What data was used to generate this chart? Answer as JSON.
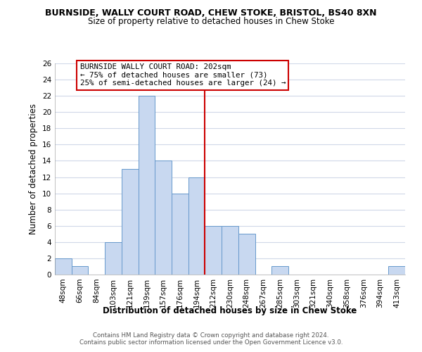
{
  "title": "BURNSIDE, WALLY COURT ROAD, CHEW STOKE, BRISTOL, BS40 8XN",
  "subtitle": "Size of property relative to detached houses in Chew Stoke",
  "xlabel": "Distribution of detached houses by size in Chew Stoke",
  "ylabel": "Number of detached properties",
  "bin_labels": [
    "48sqm",
    "66sqm",
    "84sqm",
    "103sqm",
    "121sqm",
    "139sqm",
    "157sqm",
    "176sqm",
    "194sqm",
    "212sqm",
    "230sqm",
    "248sqm",
    "267sqm",
    "285sqm",
    "303sqm",
    "321sqm",
    "340sqm",
    "358sqm",
    "376sqm",
    "394sqm",
    "413sqm"
  ],
  "bar_heights": [
    2,
    1,
    0,
    4,
    13,
    22,
    14,
    10,
    12,
    6,
    6,
    5,
    0,
    1,
    0,
    0,
    0,
    0,
    0,
    0,
    1
  ],
  "bar_color": "#c8d8f0",
  "bar_edge_color": "#6699cc",
  "property_line_x": 8.5,
  "property_line_color": "#cc0000",
  "annotation_title": "BURNSIDE WALLY COURT ROAD: 202sqm",
  "annotation_line1": "← 75% of detached houses are smaller (73)",
  "annotation_line2": "25% of semi-detached houses are larger (24) →",
  "annotation_box_facecolor": "#ffffff",
  "annotation_box_edgecolor": "#cc0000",
  "ylim": [
    0,
    26
  ],
  "yticks": [
    0,
    2,
    4,
    6,
    8,
    10,
    12,
    14,
    16,
    18,
    20,
    22,
    24,
    26
  ],
  "footer_line1": "Contains HM Land Registry data © Crown copyright and database right 2024.",
  "footer_line2": "Contains public sector information licensed under the Open Government Licence v3.0.",
  "background_color": "#ffffff",
  "grid_color": "#d0d8e8"
}
